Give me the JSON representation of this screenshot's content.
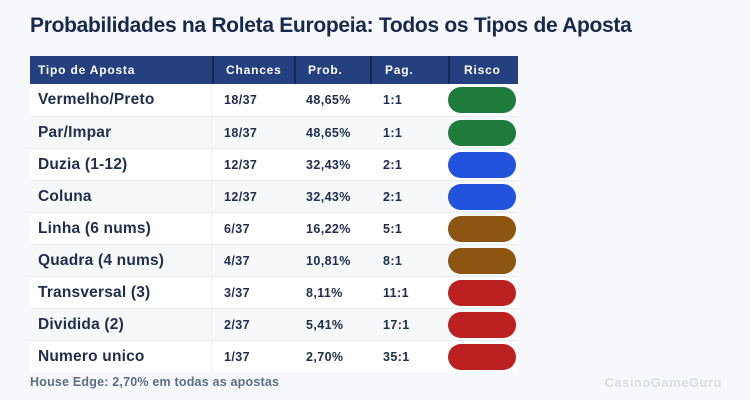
{
  "title": "Probabilidades na Roleta Europeia: Todos os Tipos de Aposta",
  "chart_data": {
    "type": "table",
    "title": "Probabilidades na Roleta Europeia: Todos os Tipos de Aposta",
    "columns": [
      "Tipo de Aposta",
      "Chances",
      "Prob.",
      "Pag.",
      "Risco"
    ],
    "rows": [
      {
        "tipo": "Vermelho/Preto",
        "chances": "18/37",
        "prob": "48,65%",
        "pag": "1:1",
        "risco_color": "#1e7b3c"
      },
      {
        "tipo": "Par/Impar",
        "chances": "18/37",
        "prob": "48,65%",
        "pag": "1:1",
        "risco_color": "#1e7b3c"
      },
      {
        "tipo": "Duzia (1-12)",
        "chances": "12/37",
        "prob": "32,43%",
        "pag": "2:1",
        "risco_color": "#2153dd"
      },
      {
        "tipo": "Coluna",
        "chances": "12/37",
        "prob": "32,43%",
        "pag": "2:1",
        "risco_color": "#2153dd"
      },
      {
        "tipo": "Linha (6 nums)",
        "chances": "6/37",
        "prob": "16,22%",
        "pag": "5:1",
        "risco_color": "#8d5512"
      },
      {
        "tipo": "Quadra (4 nums)",
        "chances": "4/37",
        "prob": "10,81%",
        "pag": "8:1",
        "risco_color": "#8d5512"
      },
      {
        "tipo": "Transversal (3)",
        "chances": "3/37",
        "prob": "8,11%",
        "pag": "11:1",
        "risco_color": "#bb2121"
      },
      {
        "tipo": "Dividida (2)",
        "chances": "2/37",
        "prob": "5,41%",
        "pag": "17:1",
        "risco_color": "#bb2121"
      },
      {
        "tipo": "Numero unico",
        "chances": "1/37",
        "prob": "2,70%",
        "pag": "35:1",
        "risco_color": "#bb2121"
      }
    ]
  },
  "footer": {
    "house_edge": "House Edge: 2,70% em todas as apostas",
    "watermark": "CasinoGameGuru"
  },
  "colors": {
    "page_bg": "#f7f8fc",
    "header_bg": "#24407f",
    "header_text": "#ffffff",
    "title_text": "#17294c",
    "cell_text": "#202e4e",
    "footer_text": "#5e6d86",
    "watermark_text": "#d9dde4",
    "risk_green": "#1e7b3c",
    "risk_blue": "#2153dd",
    "risk_amber": "#8d5512",
    "risk_red": "#bb2121"
  }
}
